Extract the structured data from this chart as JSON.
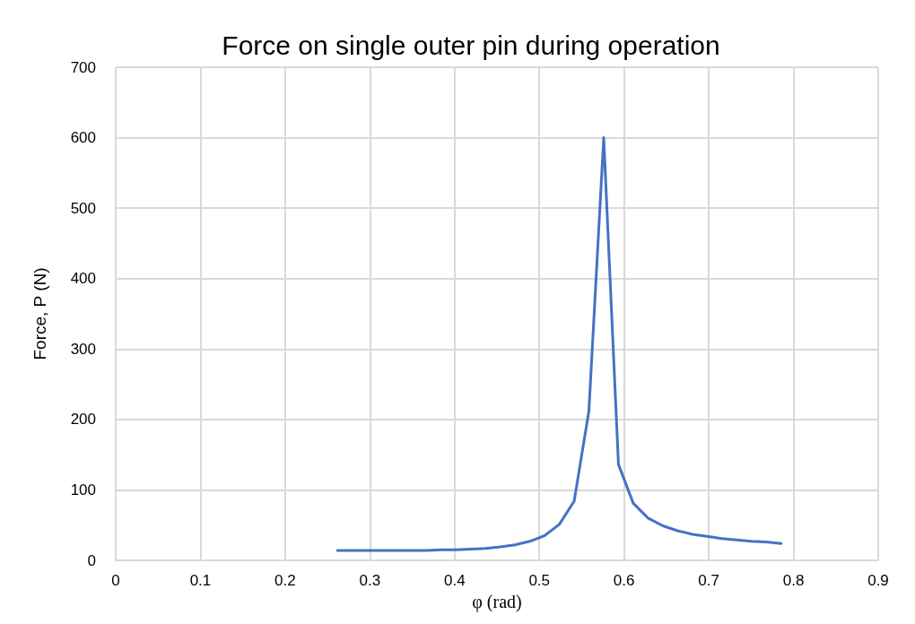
{
  "chart_data": {
    "type": "line",
    "title": "Force on single outer pin during operation",
    "xlabel": "φ (rad)",
    "ylabel": "Force, P (N)",
    "x": [
      0.2618,
      0.2793,
      0.2967,
      0.3142,
      0.3316,
      0.3491,
      0.3665,
      0.384,
      0.4014,
      0.4189,
      0.4363,
      0.4538,
      0.4712,
      0.4887,
      0.5061,
      0.5236,
      0.5411,
      0.5585,
      0.576,
      0.5934,
      0.6109,
      0.6283,
      0.6458,
      0.6632,
      0.6807,
      0.6981,
      0.7156,
      0.733,
      0.7505,
      0.7679,
      0.7854
    ],
    "series": [
      {
        "color": "#4472c4",
        "values": [
          14,
          14,
          14,
          14,
          14,
          14,
          14,
          15,
          15,
          16,
          17,
          19,
          22,
          27,
          35,
          51,
          84,
          212,
          600,
          136,
          81,
          60,
          49,
          42,
          37,
          34,
          31,
          29,
          27,
          26,
          24
        ]
      }
    ],
    "xlim": [
      0,
      0.9
    ],
    "xticks": [
      0,
      0.1,
      0.2,
      0.3,
      0.4,
      0.5,
      0.6,
      0.7,
      0.8,
      0.9
    ],
    "ylim": [
      0,
      700
    ],
    "yticks": [
      0,
      100,
      200,
      300,
      400,
      500,
      600,
      700
    ],
    "grid": true,
    "marker": "none",
    "line_style": "solid"
  }
}
